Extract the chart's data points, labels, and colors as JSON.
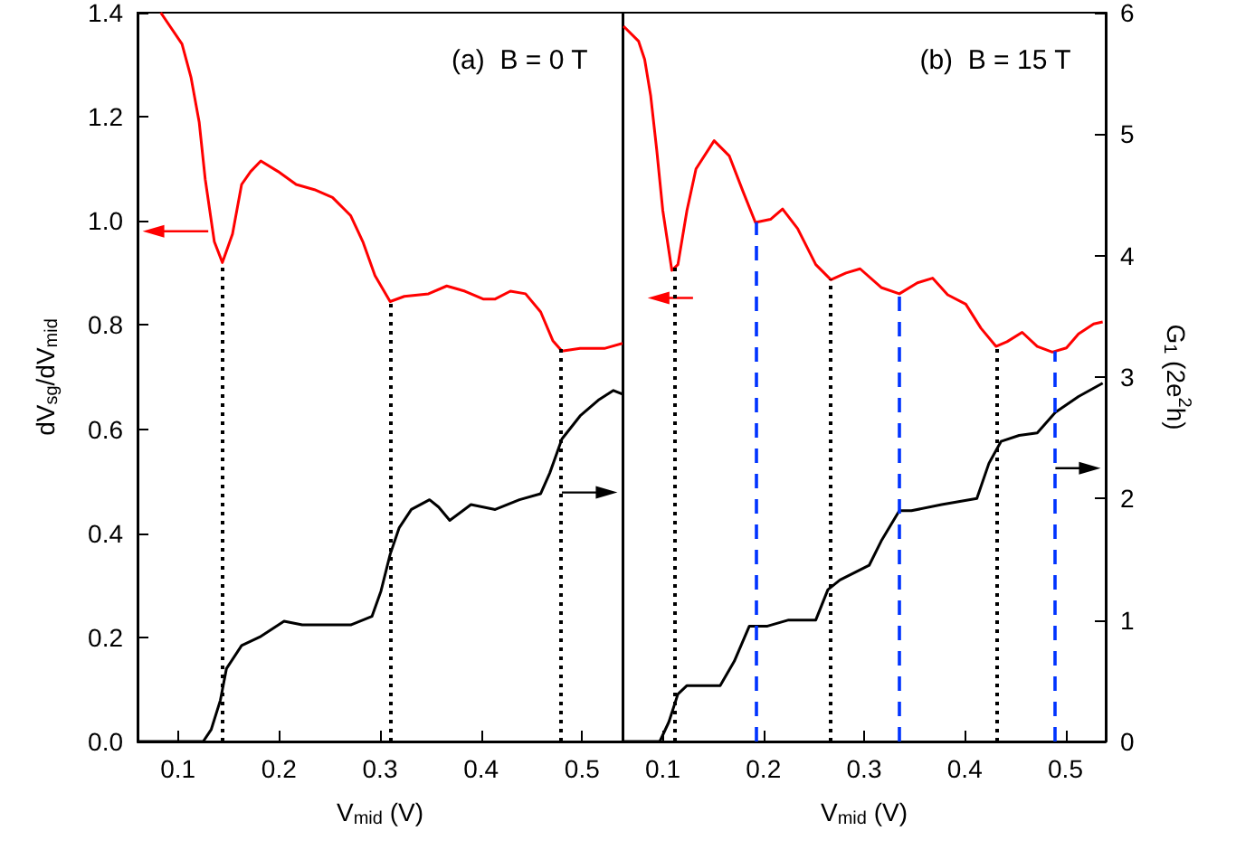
{
  "chart_data": [
    {
      "type": "line",
      "title": "(a)  B = 0 T",
      "xlabel": "V$_{mid}$ (V)",
      "ylabel": "dV$_{sg}$/dV$_{mid}$",
      "xlim": [
        0.06,
        0.54
      ],
      "xticks": [
        0.1,
        0.2,
        0.3,
        0.4,
        0.5
      ],
      "ylim": [
        0,
        1.4
      ],
      "yticks": [
        {
          "value": 0,
          "label": "0.0"
        },
        0.2,
        0.4,
        0.6,
        0.8,
        {
          "value": 1,
          "label": "1.0"
        },
        1.2,
        1.4
      ],
      "y2lim": [
        0,
        6
      ],
      "tick_labels": "xy",
      "series": [
        {
          "color": "#ff0000",
          "axis": "y",
          "x": [
            0.083,
            0.104,
            0.113,
            0.121,
            0.127,
            0.136,
            0.144,
            0.154,
            0.163,
            0.172,
            0.182,
            0.199,
            0.217,
            0.235,
            0.253,
            0.271,
            0.283,
            0.295,
            0.31,
            0.324,
            0.348,
            0.366,
            0.384,
            0.402,
            0.414,
            0.429,
            0.444,
            0.459,
            0.471,
            0.48,
            0.498,
            0.522,
            0.54
          ],
          "values": [
            1.4,
            1.34,
            1.275,
            1.19,
            1.08,
            0.96,
            0.92,
            0.975,
            1.07,
            1.095,
            1.115,
            1.095,
            1.07,
            1.06,
            1.045,
            1.01,
            0.96,
            0.895,
            0.845,
            0.855,
            0.86,
            0.875,
            0.865,
            0.85,
            0.85,
            0.865,
            0.86,
            0.825,
            0.77,
            0.75,
            0.755,
            0.755,
            0.765
          ]
        },
        {
          "color": "#000000",
          "axis": "y2",
          "x": [
            0.06,
            0.125,
            0.133,
            0.142,
            0.148,
            0.163,
            0.181,
            0.205,
            0.223,
            0.247,
            0.271,
            0.292,
            0.301,
            0.31,
            0.319,
            0.331,
            0.349,
            0.358,
            0.369,
            0.39,
            0.414,
            0.438,
            0.459,
            0.468,
            0.48,
            0.498,
            0.516,
            0.531,
            0.54
          ],
          "values": [
            0,
            0,
            0.1,
            0.34,
            0.6,
            0.79,
            0.86,
            0.99,
            0.96,
            0.96,
            0.96,
            1.03,
            1.24,
            1.54,
            1.76,
            1.91,
            1.99,
            1.93,
            1.82,
            1.95,
            1.91,
            1.99,
            2.04,
            2.21,
            2.49,
            2.68,
            2.81,
            2.89,
            2.86
          ]
        }
      ],
      "ref_lines": [
        {
          "axis": "x",
          "value": 0.144,
          "color": "#000000",
          "line_style": "dotted"
        },
        {
          "axis": "x",
          "value": 0.311,
          "color": "#000000",
          "line_style": "dotted"
        },
        {
          "axis": "x",
          "value": 0.478,
          "color": "#000000",
          "line_style": "dotted"
        }
      ]
    },
    {
      "type": "line",
      "title": "(b)  B = 15 T",
      "xlabel": "V$_{mid}$ (V)",
      "y2label": "G$_{1}$ (2e$^{2}$h)",
      "xlim": [
        0.06,
        0.54
      ],
      "xticks": [
        0.1,
        0.2,
        0.3,
        0.4,
        0.5
      ],
      "ylim": [
        0,
        1.4
      ],
      "y2lim": [
        0,
        6
      ],
      "y2ticks": [
        0,
        1,
        2,
        3,
        4,
        5,
        6
      ],
      "tick_labels": "xy2",
      "series": [
        {
          "color": "#ff0000",
          "axis": "y",
          "x": [
            0.061,
            0.076,
            0.082,
            0.088,
            0.094,
            0.1,
            0.109,
            0.115,
            0.124,
            0.133,
            0.151,
            0.166,
            0.18,
            0.192,
            0.207,
            0.219,
            0.234,
            0.252,
            0.267,
            0.282,
            0.296,
            0.317,
            0.335,
            0.353,
            0.368,
            0.383,
            0.401,
            0.416,
            0.431,
            0.442,
            0.457,
            0.472,
            0.487,
            0.501,
            0.513,
            0.528,
            0.537
          ],
          "values": [
            1.374,
            1.345,
            1.31,
            1.24,
            1.136,
            1.02,
            0.905,
            0.916,
            1.02,
            1.1,
            1.154,
            1.125,
            1.055,
            0.997,
            1.003,
            1.023,
            0.985,
            0.916,
            0.887,
            0.9,
            0.908,
            0.872,
            0.86,
            0.881,
            0.89,
            0.858,
            0.84,
            0.794,
            0.759,
            0.768,
            0.786,
            0.759,
            0.748,
            0.756,
            0.783,
            0.802,
            0.806
          ]
        },
        {
          "color": "#000000",
          "axis": "y2",
          "x": [
            0.06,
            0.097,
            0.106,
            0.115,
            0.124,
            0.139,
            0.157,
            0.171,
            0.186,
            0.204,
            0.225,
            0.252,
            0.264,
            0.276,
            0.305,
            0.317,
            0.335,
            0.347,
            0.377,
            0.412,
            0.424,
            0.436,
            0.454,
            0.472,
            0.49,
            0.513,
            0.537
          ],
          "values": [
            0,
            0,
            0.16,
            0.39,
            0.46,
            0.46,
            0.46,
            0.66,
            0.95,
            0.95,
            1.0,
            1.0,
            1.25,
            1.33,
            1.45,
            1.65,
            1.9,
            1.9,
            1.95,
            2.0,
            2.29,
            2.47,
            2.52,
            2.54,
            2.71,
            2.84,
            2.95
          ]
        }
      ],
      "ref_lines": [
        {
          "axis": "x",
          "value": 0.112,
          "color": "#000000",
          "line_style": "dotted"
        },
        {
          "axis": "x",
          "value": 0.193,
          "color": "#0033ff",
          "line_style": "dashed"
        },
        {
          "axis": "x",
          "value": 0.267,
          "color": "#000000",
          "line_style": "dotted"
        },
        {
          "axis": "x",
          "value": 0.335,
          "color": "#0033ff",
          "line_style": "dashed"
        },
        {
          "axis": "x",
          "value": 0.431,
          "color": "#000000",
          "line_style": "dotted"
        },
        {
          "axis": "x",
          "value": 0.49,
          "color": "#0033ff",
          "line_style": "dashed"
        }
      ]
    }
  ]
}
